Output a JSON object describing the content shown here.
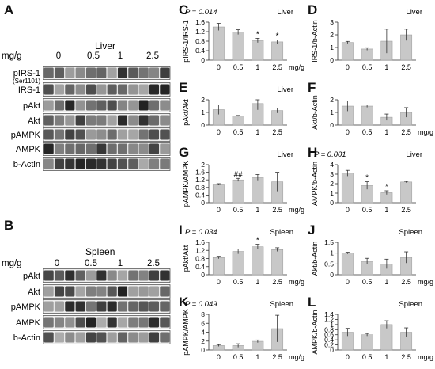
{
  "figure": {
    "panel_labels": [
      "A",
      "B",
      "C",
      "D",
      "E",
      "F",
      "G",
      "H",
      "I",
      "J",
      "K",
      "L"
    ]
  },
  "blot_a": {
    "tissue": "Liver",
    "dose_label": "mg/g",
    "doses": [
      "0",
      "0.5",
      "1",
      "2.5"
    ],
    "rows": [
      {
        "name": "pIRS-1",
        "sub": "(Ser1101)"
      },
      {
        "name": "IRS-1",
        "sub": ""
      },
      {
        "name": "pAkt",
        "sub": ""
      },
      {
        "name": "Akt",
        "sub": ""
      },
      {
        "name": "pAMPK",
        "sub": ""
      },
      {
        "name": "AMPK",
        "sub": ""
      },
      {
        "name": "b-Actin",
        "sub": ""
      }
    ]
  },
  "blot_b": {
    "tissue": "Spleen",
    "dose_label": "mg/g",
    "doses": [
      "0",
      "0.5",
      "1",
      "2.5"
    ],
    "rows": [
      {
        "name": "pAkt",
        "sub": ""
      },
      {
        "name": "Akt",
        "sub": ""
      },
      {
        "name": "pAMPK",
        "sub": ""
      },
      {
        "name": "AMPK",
        "sub": ""
      },
      {
        "name": "b-Actin",
        "sub": ""
      }
    ]
  },
  "chart_data": [
    {
      "panel": "C",
      "type": "bar",
      "tissue": "Liver",
      "pvalue": "P = 0.014",
      "ylabel": "pIRS-1/IRS-1",
      "ylim": [
        0,
        1.6
      ],
      "yticks": [
        "0",
        "0.4",
        "0.8",
        "1.2",
        "1.6"
      ],
      "categories": [
        "0",
        "0.5",
        "1",
        "2.5"
      ],
      "xunit": "mg/g",
      "values": [
        1.4,
        1.18,
        0.83,
        0.77
      ],
      "errors": [
        0.15,
        0.1,
        0.09,
        0.08
      ],
      "marks": [
        "",
        "",
        "*",
        "*"
      ]
    },
    {
      "panel": "D",
      "type": "bar",
      "tissue": "Liver",
      "pvalue": "",
      "ylabel": "IRS-1/b-Actin",
      "ylim": [
        0,
        3
      ],
      "yticks": [
        "0",
        "1",
        "2",
        "3"
      ],
      "categories": [
        "0",
        "0.5",
        "1",
        "2.5"
      ],
      "xunit": "",
      "values": [
        1.4,
        0.88,
        1.5,
        2.0
      ],
      "errors": [
        0.08,
        0.1,
        0.95,
        0.45
      ],
      "marks": [
        "",
        "",
        "",
        ""
      ]
    },
    {
      "panel": "E",
      "type": "bar",
      "tissue": "Liver",
      "pvalue": "",
      "ylabel": "pAkt/Akt",
      "ylim": [
        0,
        2
      ],
      "yticks": [
        "0",
        "1",
        "2"
      ],
      "categories": [
        "0",
        "0.5",
        "1",
        "2.5"
      ],
      "xunit": "",
      "values": [
        1.22,
        0.72,
        1.7,
        1.15
      ],
      "errors": [
        0.38,
        0.04,
        0.5,
        0.2
      ],
      "marks": [
        "",
        "",
        "",
        ""
      ]
    },
    {
      "panel": "F",
      "type": "bar",
      "tissue": "",
      "pvalue": "",
      "ylabel": "Akt/b-Actin",
      "ylim": [
        0,
        2
      ],
      "yticks": [
        "0",
        "1",
        "2"
      ],
      "categories": [
        "0",
        "0.5",
        "1",
        "2.5"
      ],
      "xunit": "mg/g",
      "values": [
        1.5,
        1.5,
        0.62,
        1.0
      ],
      "errors": [
        0.4,
        0.1,
        0.25,
        0.38
      ],
      "marks": [
        "",
        "",
        "",
        ""
      ]
    },
    {
      "panel": "G",
      "type": "bar",
      "tissue": "Liver",
      "pvalue": "",
      "ylabel": "pAMPK/AMPK",
      "ylim": [
        0,
        2
      ],
      "yticks": [
        "0",
        "0.4",
        "0.8",
        "1.2",
        "1.6",
        "2"
      ],
      "categories": [
        "0",
        "0.5",
        "1",
        "2.5"
      ],
      "xunit": "mg/g",
      "values": [
        0.98,
        1.2,
        1.33,
        1.1
      ],
      "errors": [
        0.02,
        0.08,
        0.15,
        0.5
      ],
      "marks": [
        "",
        "##",
        "",
        ""
      ]
    },
    {
      "panel": "H",
      "type": "bar",
      "tissue": "Liver",
      "pvalue": "P = 0.001",
      "ylabel": "AMPK/b-Actin",
      "ylim": [
        0,
        4
      ],
      "yticks": [
        "0",
        "1",
        "2",
        "3",
        "4"
      ],
      "categories": [
        "0",
        "0.5",
        "1",
        "2.5"
      ],
      "xunit": "",
      "values": [
        3.1,
        1.8,
        1.05,
        2.18
      ],
      "errors": [
        0.3,
        0.4,
        0.2,
        0.07
      ],
      "marks": [
        "",
        "*",
        "*",
        ""
      ]
    },
    {
      "panel": "I",
      "type": "bar",
      "tissue": "Spleen",
      "pvalue": "P = 0.034",
      "ylabel": "pAkt/Akt",
      "ylim": [
        0,
        1.6
      ],
      "yticks": [
        "0",
        "0.4",
        "0.8",
        "1.2",
        "1.6"
      ],
      "categories": [
        "0",
        "0.5",
        "1",
        "2.5"
      ],
      "xunit": "mg/g",
      "values": [
        0.85,
        1.15,
        1.38,
        1.24
      ],
      "errors": [
        0.06,
        0.12,
        0.12,
        0.09
      ],
      "marks": [
        "",
        "",
        "*",
        ""
      ]
    },
    {
      "panel": "J",
      "type": "bar",
      "tissue": "Spleen",
      "pvalue": "",
      "ylabel": "Akt/b-Actin",
      "ylim": [
        0,
        1.5
      ],
      "yticks": [
        "0",
        "0.5",
        "1",
        "1.5"
      ],
      "categories": [
        "0",
        "0.5",
        "1",
        "2.5"
      ],
      "xunit": "mg/g",
      "values": [
        1.0,
        0.62,
        0.5,
        0.8
      ],
      "errors": [
        0.04,
        0.14,
        0.22,
        0.26
      ],
      "marks": [
        "",
        "",
        "",
        ""
      ]
    },
    {
      "panel": "K",
      "type": "bar",
      "tissue": "Spleen",
      "pvalue": "P = 0.049",
      "ylabel": "pAMPK/AMPK",
      "ylim": [
        0,
        8
      ],
      "yticks": [
        "0",
        "2",
        "4",
        "6",
        "8"
      ],
      "categories": [
        "0",
        "0.5",
        "1",
        "2.5"
      ],
      "xunit": "mg/g",
      "values": [
        1.0,
        1.0,
        1.95,
        4.8
      ],
      "errors": [
        0.2,
        0.4,
        0.3,
        3.0
      ],
      "marks": [
        "",
        "",
        "",
        ""
      ]
    },
    {
      "panel": "L",
      "type": "bar",
      "tissue": "Spleen",
      "pvalue": "",
      "ylabel": "AMPK/b-Actin",
      "ylim": [
        0,
        1.4
      ],
      "yticks": [
        "0",
        "0.2",
        "0.4",
        "0.6",
        "0.8",
        "1",
        "1.2",
        "1.4"
      ],
      "categories": [
        "0",
        "0.5",
        "1",
        "2.5"
      ],
      "xunit": "mg/g",
      "values": [
        0.7,
        0.6,
        1.0,
        0.7
      ],
      "errors": [
        0.15,
        0.05,
        0.15,
        0.17
      ],
      "marks": [
        "",
        "",
        "",
        ""
      ]
    }
  ]
}
